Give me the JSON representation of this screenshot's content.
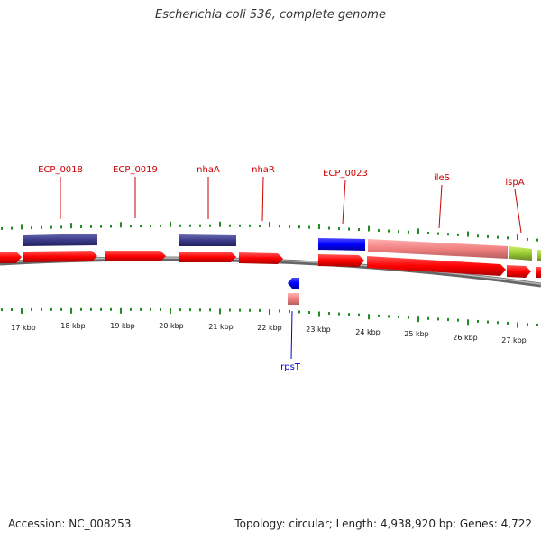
{
  "title": "Escherichia coli 536, complete genome",
  "accession": "Accession: NC_008253",
  "summary": "Topology: circular; Length: 4,938,920 bp; Genes: 4,722",
  "colors": {
    "cds_forward": "#ff0000",
    "rna_feature": "#3b3b8a",
    "cds_reverse_pink": "#f08080",
    "blue_feature": "#0000ff",
    "green_feature": "#99cc33",
    "tick": "#228b22",
    "backbone": "#888888",
    "label_red": "#cc0000",
    "label_blue": "#0000cc"
  },
  "gene_labels": [
    {
      "name": "ECP_0018",
      "color": "#cc0000"
    },
    {
      "name": "ECP_0019",
      "color": "#cc0000"
    },
    {
      "name": "nhaA",
      "color": "#cc0000"
    },
    {
      "name": "nhaR",
      "color": "#cc0000"
    },
    {
      "name": "ECP_0023",
      "color": "#cc0000"
    },
    {
      "name": "ileS",
      "color": "#cc0000"
    },
    {
      "name": "lspA",
      "color": "#cc0000"
    },
    {
      "name": "rpsT",
      "color": "#0000cc"
    }
  ],
  "kbp_labels": [
    "17 kbp",
    "18 kbp",
    "19 kbp",
    "20 kbp",
    "21 kbp",
    "22 kbp",
    "23 kbp",
    "24 kbp",
    "25 kbp",
    "26 kbp",
    "27 kbp"
  ]
}
